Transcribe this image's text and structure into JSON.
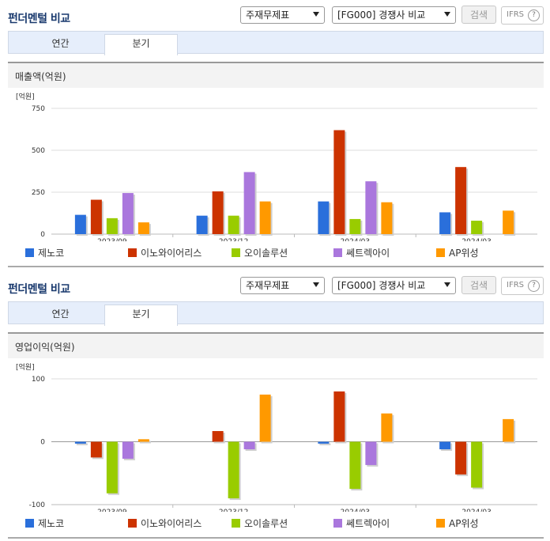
{
  "panels": [
    {
      "title": "펀더멘털 비교",
      "select1": "주재무제표",
      "select2": "[FG000] 경쟁사 비교",
      "search_label": "검색",
      "ifrs_label": "IFRS",
      "ifrs_help": "?",
      "tabs": [
        "연간",
        "분기"
      ],
      "active_tab": "분기",
      "subtitle": "매출액(억원)",
      "unit": "[억원]"
    },
    {
      "title": "펀더멘털 비교",
      "select1": "주재무제표",
      "select2": "[FG000] 경쟁사 비교",
      "search_label": "검색",
      "ifrs_label": "IFRS",
      "ifrs_help": "?",
      "tabs": [
        "연간",
        "분기"
      ],
      "active_tab": "분기",
      "subtitle": "영업이익(억원)",
      "unit": "[억원]"
    }
  ],
  "colors": {
    "제노코": "#2a6fdb",
    "이노와이어리스": "#cc3300",
    "오이솔루션": "#99cc00",
    "쎄트렉아이": "#aa77dd",
    "AP위성": "#ff9900"
  },
  "chart_data": [
    {
      "type": "bar",
      "title": "매출액(억원)",
      "unit": "[억원]",
      "categories": [
        "2023/09",
        "2023/12",
        "2024/03",
        "2024/03"
      ],
      "ylim": [
        0,
        750
      ],
      "yticks": [
        0,
        250,
        500,
        750
      ],
      "grid": true,
      "legend_position": "bottom",
      "series": [
        {
          "name": "제노코",
          "values": [
            115,
            110,
            195,
            130
          ]
        },
        {
          "name": "이노와이어리스",
          "values": [
            205,
            255,
            620,
            400
          ]
        },
        {
          "name": "오이솔루션",
          "values": [
            95,
            110,
            90,
            80
          ]
        },
        {
          "name": "쎄트렉아이",
          "values": [
            245,
            370,
            315,
            null
          ]
        },
        {
          "name": "AP위성",
          "values": [
            70,
            195,
            190,
            140
          ]
        }
      ]
    },
    {
      "type": "bar",
      "title": "영업이익(억원)",
      "unit": "[억원]",
      "categories": [
        "2023/09",
        "2023/12",
        "2024/03",
        "2024/03"
      ],
      "ylim": [
        -100,
        100
      ],
      "yticks": [
        -100,
        0,
        100
      ],
      "grid": true,
      "legend_position": "bottom",
      "series": [
        {
          "name": "제노코",
          "values": [
            -3,
            null,
            -3,
            -12
          ]
        },
        {
          "name": "이노와이어리스",
          "values": [
            -25,
            17,
            80,
            -52
          ]
        },
        {
          "name": "오이솔루션",
          "values": [
            -82,
            -90,
            -75,
            -73
          ]
        },
        {
          "name": "쎄트렉아이",
          "values": [
            -27,
            -12,
            -37,
            null
          ]
        },
        {
          "name": "AP위성",
          "values": [
            4,
            75,
            45,
            36
          ]
        }
      ]
    }
  ]
}
